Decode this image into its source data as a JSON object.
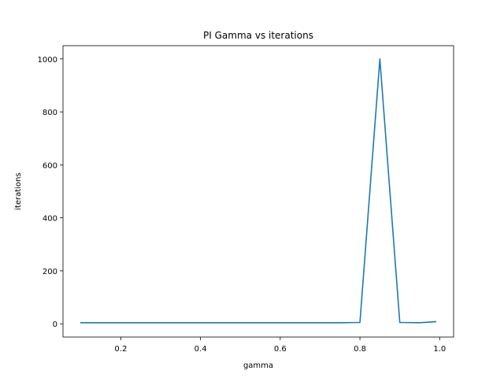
{
  "chart_data": {
    "type": "line",
    "title": "PI Gamma vs iterations",
    "xlabel": "gamma",
    "ylabel": "iterations",
    "xlim": [
      0.055,
      1.035
    ],
    "ylim": [
      -50,
      1050
    ],
    "xticks": [
      0.2,
      0.4,
      0.6,
      0.8,
      1.0
    ],
    "xtick_labels": [
      "0.2",
      "0.4",
      "0.6",
      "0.8",
      "1.0"
    ],
    "yticks": [
      0,
      200,
      400,
      600,
      800,
      1000
    ],
    "ytick_labels": [
      "0",
      "200",
      "400",
      "600",
      "800",
      "1000"
    ],
    "grid": false,
    "series": [
      {
        "color": "#1f77b4",
        "x": [
          0.1,
          0.15,
          0.2,
          0.25,
          0.3,
          0.35,
          0.4,
          0.45,
          0.5,
          0.55,
          0.6,
          0.65,
          0.7,
          0.75,
          0.8,
          0.85,
          0.9,
          0.95,
          0.99
        ],
        "y": [
          4,
          4,
          4,
          4,
          4,
          4,
          4,
          4,
          4,
          4,
          4,
          4,
          4,
          4,
          5,
          1000,
          5,
          4,
          8
        ]
      }
    ]
  }
}
